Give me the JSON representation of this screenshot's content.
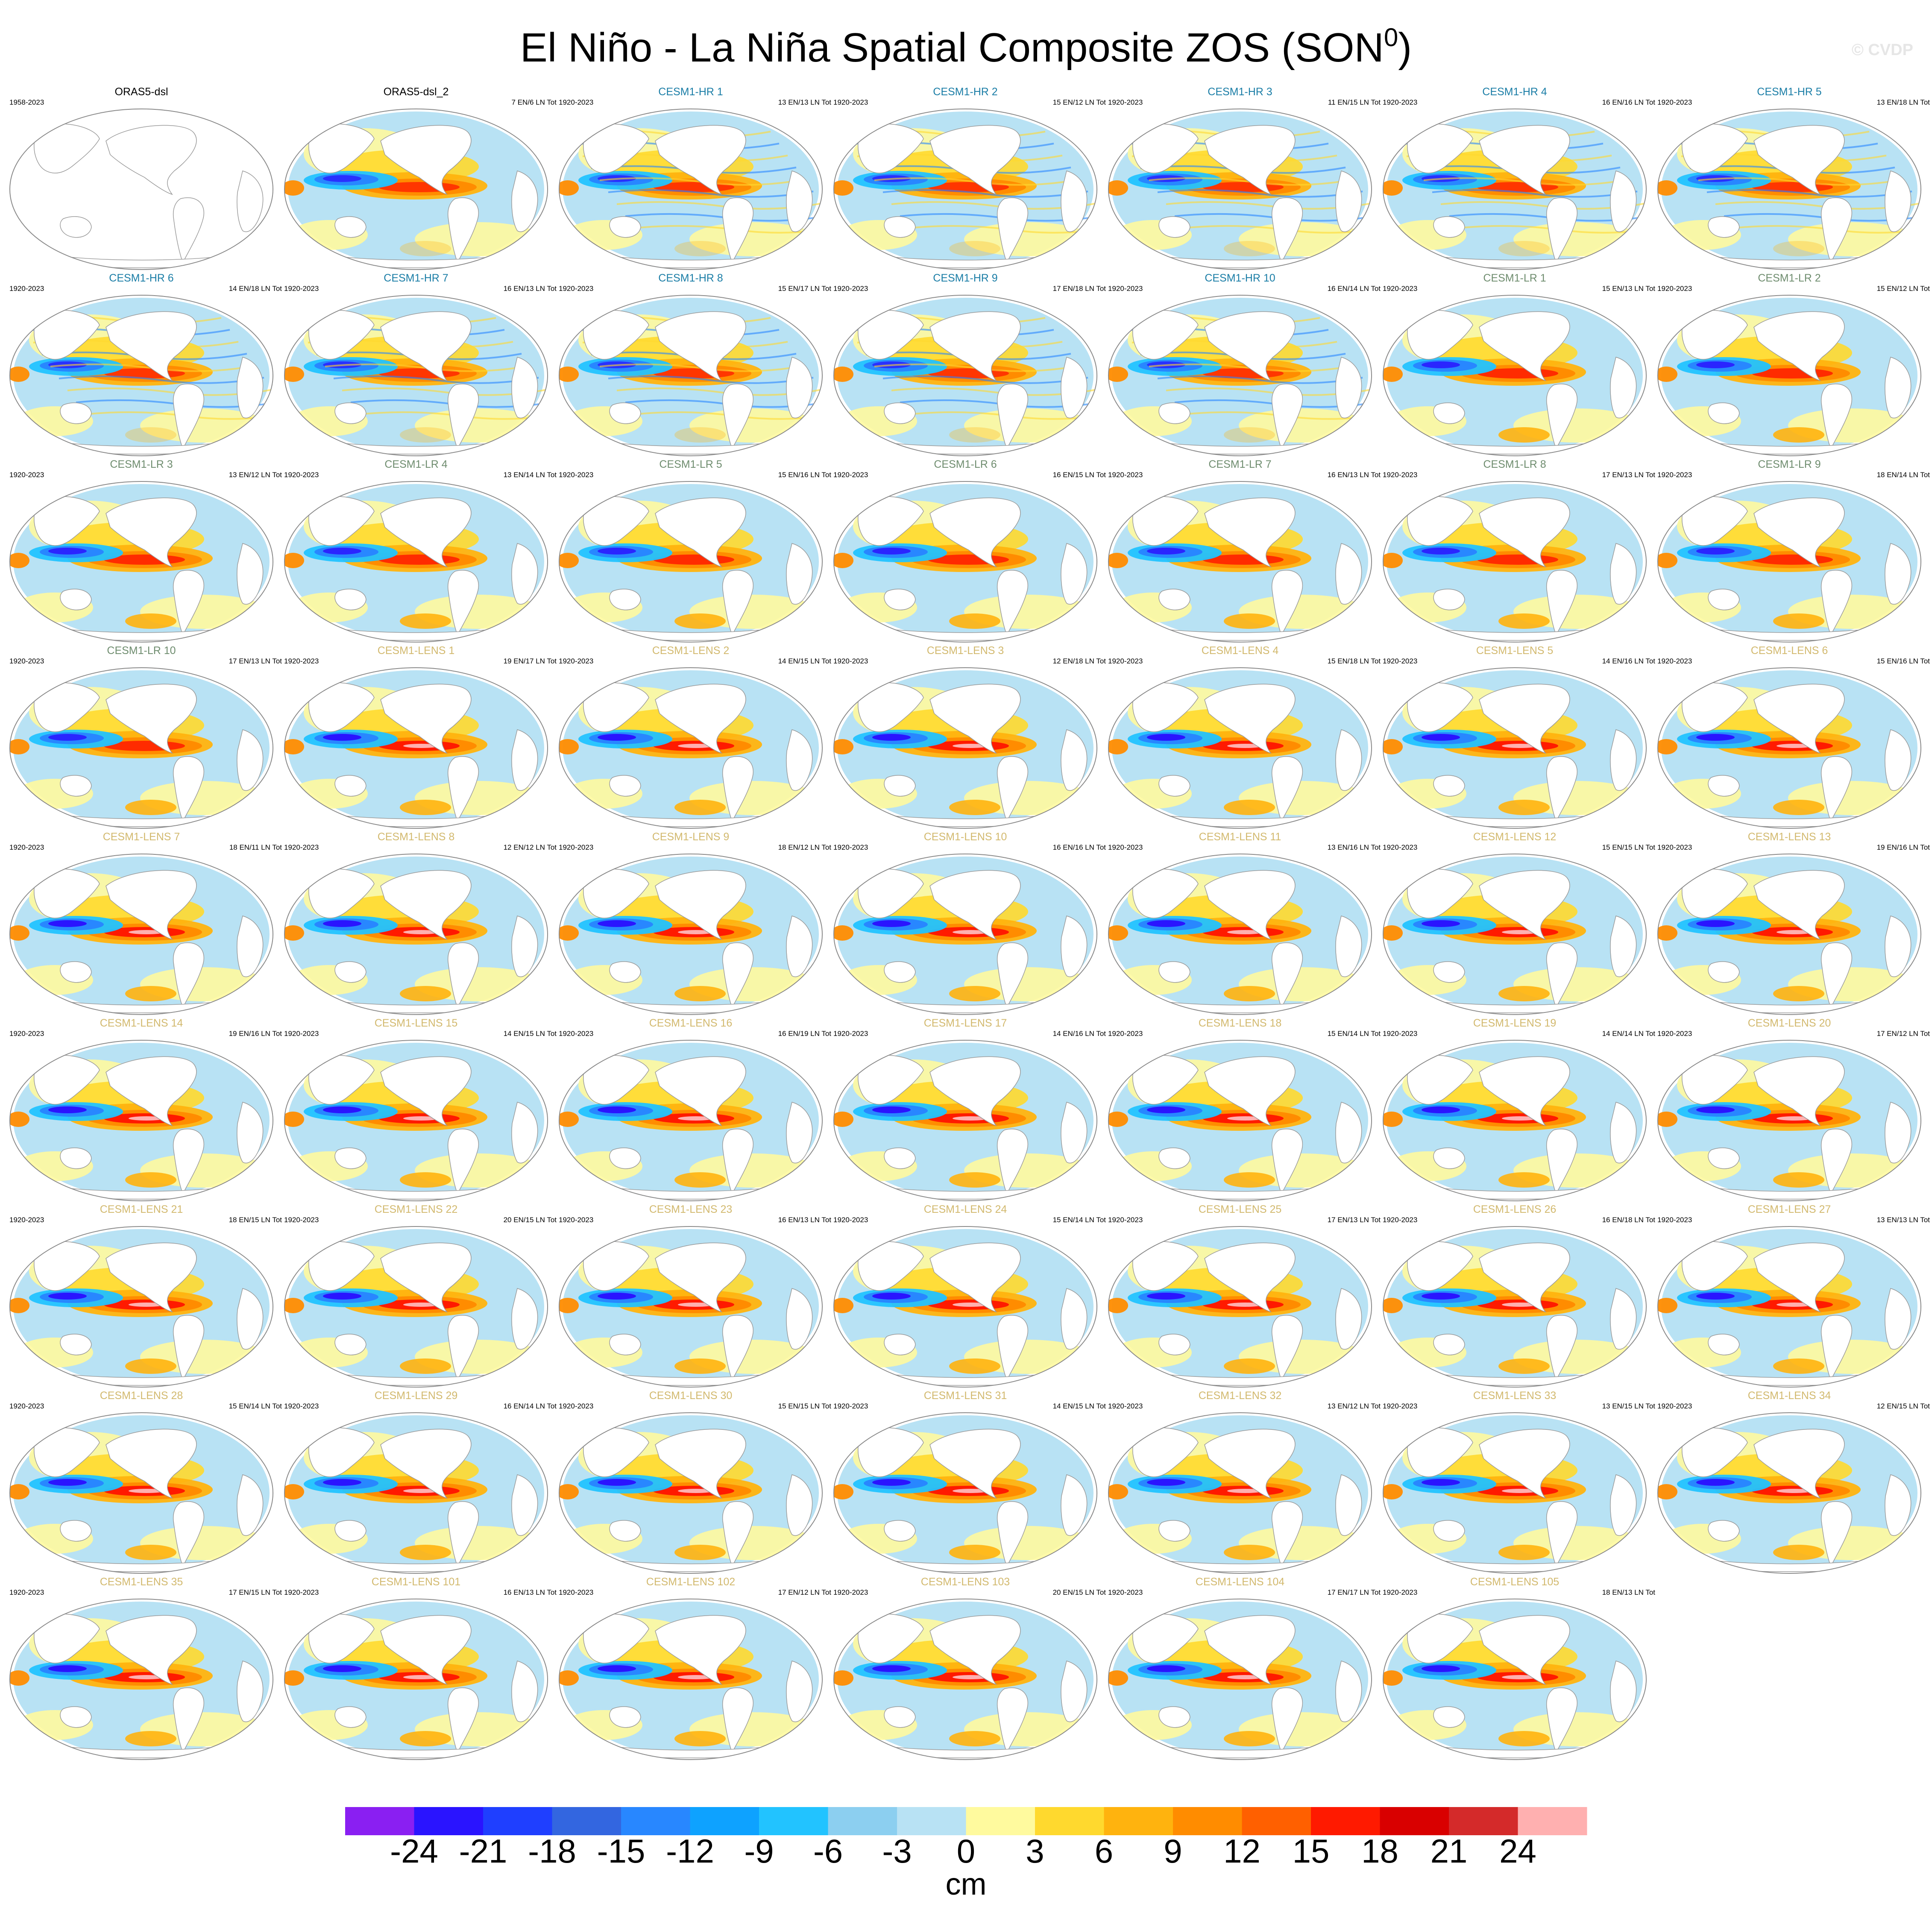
{
  "header": {
    "title": "El Niño - La Niña Spatial Composite ZOS (SON",
    "title_superscript": "0",
    "title_suffix": ")",
    "watermark": "© CVDP"
  },
  "chart_data": {
    "type": "heatmap",
    "description_variable": "ZOS",
    "grid_columns": 7,
    "panels": [
      {
        "title": "ORAS5-dsl",
        "years": "1958-2023",
        "counts": "",
        "style": "obs",
        "map": "empty",
        "title_color": "#000000"
      },
      {
        "title": "ORAS5-dsl_2",
        "years": "",
        "counts": "7 EN/6 LN Tot",
        "style": "obs",
        "map": "field",
        "title_color": "#000000"
      },
      {
        "title": "CESM1-HR 1",
        "years": "1920-2023",
        "counts": "13 EN/13 LN Tot",
        "style": "hr",
        "map": "field",
        "title_color": "#1a7da6"
      },
      {
        "title": "CESM1-HR 2",
        "years": "1920-2023",
        "counts": "15 EN/12 LN Tot",
        "style": "hr",
        "map": "field",
        "title_color": "#1a7da6"
      },
      {
        "title": "CESM1-HR 3",
        "years": "1920-2023",
        "counts": "11 EN/15 LN Tot",
        "style": "hr",
        "map": "field",
        "title_color": "#1a7da6"
      },
      {
        "title": "CESM1-HR 4",
        "years": "1920-2023",
        "counts": "16 EN/16 LN Tot",
        "style": "hr",
        "map": "field",
        "title_color": "#1a7da6"
      },
      {
        "title": "CESM1-HR 5",
        "years": "1920-2023",
        "counts": "13 EN/18 LN Tot",
        "style": "hr",
        "map": "field",
        "title_color": "#1a7da6"
      },
      {
        "title": "CESM1-HR 6",
        "years": "1920-2023",
        "counts": "14 EN/18 LN Tot",
        "style": "hr",
        "map": "field",
        "title_color": "#1a7da6"
      },
      {
        "title": "CESM1-HR 7",
        "years": "1920-2023",
        "counts": "16 EN/13 LN Tot",
        "style": "hr",
        "map": "field",
        "title_color": "#1a7da6"
      },
      {
        "title": "CESM1-HR 8",
        "years": "1920-2023",
        "counts": "15 EN/17 LN Tot",
        "style": "hr",
        "map": "field",
        "title_color": "#1a7da6"
      },
      {
        "title": "CESM1-HR 9",
        "years": "1920-2023",
        "counts": "17 EN/18 LN Tot",
        "style": "hr",
        "map": "field",
        "title_color": "#1a7da6"
      },
      {
        "title": "CESM1-HR 10",
        "years": "1920-2023",
        "counts": "16 EN/14 LN Tot",
        "style": "hr",
        "map": "field",
        "title_color": "#1a7da6"
      },
      {
        "title": "CESM1-LR 1",
        "years": "1920-2023",
        "counts": "15 EN/13 LN Tot",
        "style": "lr",
        "map": "field",
        "title_color": "#6e8c6e"
      },
      {
        "title": "CESM1-LR 2",
        "years": "1920-2023",
        "counts": "15 EN/12 LN Tot",
        "style": "lr",
        "map": "field",
        "title_color": "#6e8c6e"
      },
      {
        "title": "CESM1-LR 3",
        "years": "1920-2023",
        "counts": "13 EN/12 LN Tot",
        "style": "lr",
        "map": "field",
        "title_color": "#6e8c6e"
      },
      {
        "title": "CESM1-LR 4",
        "years": "1920-2023",
        "counts": "13 EN/14 LN Tot",
        "style": "lr",
        "map": "field",
        "title_color": "#6e8c6e"
      },
      {
        "title": "CESM1-LR 5",
        "years": "1920-2023",
        "counts": "15 EN/16 LN Tot",
        "style": "lr",
        "map": "field",
        "title_color": "#6e8c6e"
      },
      {
        "title": "CESM1-LR 6",
        "years": "1920-2023",
        "counts": "16 EN/15 LN Tot",
        "style": "lr",
        "map": "field",
        "title_color": "#6e8c6e"
      },
      {
        "title": "CESM1-LR 7",
        "years": "1920-2023",
        "counts": "16 EN/13 LN Tot",
        "style": "lr",
        "map": "field",
        "title_color": "#6e8c6e"
      },
      {
        "title": "CESM1-LR 8",
        "years": "1920-2023",
        "counts": "17 EN/13 LN Tot",
        "style": "lr",
        "map": "field",
        "title_color": "#6e8c6e"
      },
      {
        "title": "CESM1-LR 9",
        "years": "1920-2023",
        "counts": "18 EN/14 LN Tot",
        "style": "lr",
        "map": "field",
        "title_color": "#6e8c6e"
      },
      {
        "title": "CESM1-LR 10",
        "years": "1920-2023",
        "counts": "17 EN/13 LN Tot",
        "style": "lr",
        "map": "field",
        "title_color": "#6e8c6e"
      },
      {
        "title": "CESM1-LENS 1",
        "years": "1920-2023",
        "counts": "19 EN/17 LN Tot",
        "style": "lens",
        "map": "field",
        "title_color": "#d2b96e"
      },
      {
        "title": "CESM1-LENS 2",
        "years": "1920-2023",
        "counts": "14 EN/15 LN Tot",
        "style": "lens",
        "map": "field",
        "title_color": "#d2b96e"
      },
      {
        "title": "CESM1-LENS 3",
        "years": "1920-2023",
        "counts": "12 EN/18 LN Tot",
        "style": "lens",
        "map": "field",
        "title_color": "#d2b96e"
      },
      {
        "title": "CESM1-LENS 4",
        "years": "1920-2023",
        "counts": "15 EN/18 LN Tot",
        "style": "lens",
        "map": "field",
        "title_color": "#d2b96e"
      },
      {
        "title": "CESM1-LENS 5",
        "years": "1920-2023",
        "counts": "14 EN/16 LN Tot",
        "style": "lens",
        "map": "field",
        "title_color": "#d2b96e"
      },
      {
        "title": "CESM1-LENS 6",
        "years": "1920-2023",
        "counts": "15 EN/16 LN Tot",
        "style": "lens",
        "map": "field",
        "title_color": "#d2b96e"
      },
      {
        "title": "CESM1-LENS 7",
        "years": "1920-2023",
        "counts": "18 EN/11 LN Tot",
        "style": "lens",
        "map": "field",
        "title_color": "#d2b96e"
      },
      {
        "title": "CESM1-LENS 8",
        "years": "1920-2023",
        "counts": "12 EN/12 LN Tot",
        "style": "lens",
        "map": "field",
        "title_color": "#d2b96e"
      },
      {
        "title": "CESM1-LENS 9",
        "years": "1920-2023",
        "counts": "18 EN/12 LN Tot",
        "style": "lens",
        "map": "field",
        "title_color": "#d2b96e"
      },
      {
        "title": "CESM1-LENS 10",
        "years": "1920-2023",
        "counts": "16 EN/16 LN Tot",
        "style": "lens",
        "map": "field",
        "title_color": "#d2b96e"
      },
      {
        "title": "CESM1-LENS 11",
        "years": "1920-2023",
        "counts": "13 EN/16 LN Tot",
        "style": "lens",
        "map": "field",
        "title_color": "#d2b96e"
      },
      {
        "title": "CESM1-LENS 12",
        "years": "1920-2023",
        "counts": "15 EN/15 LN Tot",
        "style": "lens",
        "map": "field",
        "title_color": "#d2b96e"
      },
      {
        "title": "CESM1-LENS 13",
        "years": "1920-2023",
        "counts": "19 EN/16 LN Tot",
        "style": "lens",
        "map": "field",
        "title_color": "#d2b96e"
      },
      {
        "title": "CESM1-LENS 14",
        "years": "1920-2023",
        "counts": "19 EN/16 LN Tot",
        "style": "lens",
        "map": "field",
        "title_color": "#d2b96e"
      },
      {
        "title": "CESM1-LENS 15",
        "years": "1920-2023",
        "counts": "14 EN/15 LN Tot",
        "style": "lens",
        "map": "field",
        "title_color": "#d2b96e"
      },
      {
        "title": "CESM1-LENS 16",
        "years": "1920-2023",
        "counts": "16 EN/19 LN Tot",
        "style": "lens",
        "map": "field",
        "title_color": "#d2b96e"
      },
      {
        "title": "CESM1-LENS 17",
        "years": "1920-2023",
        "counts": "14 EN/16 LN Tot",
        "style": "lens",
        "map": "field",
        "title_color": "#d2b96e"
      },
      {
        "title": "CESM1-LENS 18",
        "years": "1920-2023",
        "counts": "15 EN/14 LN Tot",
        "style": "lens",
        "map": "field",
        "title_color": "#d2b96e"
      },
      {
        "title": "CESM1-LENS 19",
        "years": "1920-2023",
        "counts": "14 EN/14 LN Tot",
        "style": "lens",
        "map": "field",
        "title_color": "#d2b96e"
      },
      {
        "title": "CESM1-LENS 20",
        "years": "1920-2023",
        "counts": "17 EN/12 LN Tot",
        "style": "lens",
        "map": "field",
        "title_color": "#d2b96e"
      },
      {
        "title": "CESM1-LENS 21",
        "years": "1920-2023",
        "counts": "18 EN/15 LN Tot",
        "style": "lens",
        "map": "field",
        "title_color": "#d2b96e"
      },
      {
        "title": "CESM1-LENS 22",
        "years": "1920-2023",
        "counts": "20 EN/15 LN Tot",
        "style": "lens",
        "map": "field",
        "title_color": "#d2b96e"
      },
      {
        "title": "CESM1-LENS 23",
        "years": "1920-2023",
        "counts": "16 EN/13 LN Tot",
        "style": "lens",
        "map": "field",
        "title_color": "#d2b96e"
      },
      {
        "title": "CESM1-LENS 24",
        "years": "1920-2023",
        "counts": "15 EN/14 LN Tot",
        "style": "lens",
        "map": "field",
        "title_color": "#d2b96e"
      },
      {
        "title": "CESM1-LENS 25",
        "years": "1920-2023",
        "counts": "17 EN/13 LN Tot",
        "style": "lens",
        "map": "field",
        "title_color": "#d2b96e"
      },
      {
        "title": "CESM1-LENS 26",
        "years": "1920-2023",
        "counts": "16 EN/18 LN Tot",
        "style": "lens",
        "map": "field",
        "title_color": "#d2b96e"
      },
      {
        "title": "CESM1-LENS 27",
        "years": "1920-2023",
        "counts": "13 EN/13 LN Tot",
        "style": "lens",
        "map": "field",
        "title_color": "#d2b96e"
      },
      {
        "title": "CESM1-LENS 28",
        "years": "1920-2023",
        "counts": "15 EN/14 LN Tot",
        "style": "lens",
        "map": "field",
        "title_color": "#d2b96e"
      },
      {
        "title": "CESM1-LENS 29",
        "years": "1920-2023",
        "counts": "16 EN/14 LN Tot",
        "style": "lens",
        "map": "field",
        "title_color": "#d2b96e"
      },
      {
        "title": "CESM1-LENS 30",
        "years": "1920-2023",
        "counts": "15 EN/15 LN Tot",
        "style": "lens",
        "map": "field",
        "title_color": "#d2b96e"
      },
      {
        "title": "CESM1-LENS 31",
        "years": "1920-2023",
        "counts": "14 EN/15 LN Tot",
        "style": "lens",
        "map": "field",
        "title_color": "#d2b96e"
      },
      {
        "title": "CESM1-LENS 32",
        "years": "1920-2023",
        "counts": "13 EN/12 LN Tot",
        "style": "lens",
        "map": "field",
        "title_color": "#d2b96e"
      },
      {
        "title": "CESM1-LENS 33",
        "years": "1920-2023",
        "counts": "13 EN/15 LN Tot",
        "style": "lens",
        "map": "field",
        "title_color": "#d2b96e"
      },
      {
        "title": "CESM1-LENS 34",
        "years": "1920-2023",
        "counts": "12 EN/15 LN Tot",
        "style": "lens",
        "map": "field",
        "title_color": "#d2b96e"
      },
      {
        "title": "CESM1-LENS 35",
        "years": "1920-2023",
        "counts": "17 EN/15 LN Tot",
        "style": "lens",
        "map": "field",
        "title_color": "#d2b96e"
      },
      {
        "title": "CESM1-LENS 101",
        "years": "1920-2023",
        "counts": "16 EN/13 LN Tot",
        "style": "lens",
        "map": "field",
        "title_color": "#d2b96e"
      },
      {
        "title": "CESM1-LENS 102",
        "years": "1920-2023",
        "counts": "17 EN/12 LN Tot",
        "style": "lens",
        "map": "field",
        "title_color": "#d2b96e"
      },
      {
        "title": "CESM1-LENS 103",
        "years": "1920-2023",
        "counts": "20 EN/15 LN Tot",
        "style": "lens",
        "map": "field",
        "title_color": "#d2b96e"
      },
      {
        "title": "CESM1-LENS 104",
        "years": "1920-2023",
        "counts": "17 EN/17 LN Tot",
        "style": "lens",
        "map": "field",
        "title_color": "#d2b96e"
      },
      {
        "title": "CESM1-LENS 105",
        "years": "1920-2023",
        "counts": "18 EN/13 LN Tot",
        "style": "lens",
        "map": "field",
        "title_color": "#d2b96e"
      }
    ],
    "colorbar": {
      "colors": [
        "#8a1ff2",
        "#2a14ff",
        "#1f3fff",
        "#3366e0",
        "#2887ff",
        "#0ea2ff",
        "#22c3ff",
        "#8ccff0",
        "#b8e2f4",
        "#fffa9e",
        "#ffd92e",
        "#ffb30e",
        "#ff8c00",
        "#ff6000",
        "#ff1a00",
        "#d90000",
        "#d42a2a",
        "#ffb0b0"
      ],
      "tick_labels": [
        "-24",
        "-21",
        "-18",
        "-15",
        "-12",
        "-9",
        "-6",
        "-3",
        "0",
        "3",
        "6",
        "9",
        "12",
        "15",
        "18",
        "21",
        "24"
      ],
      "unit": "cm"
    }
  }
}
